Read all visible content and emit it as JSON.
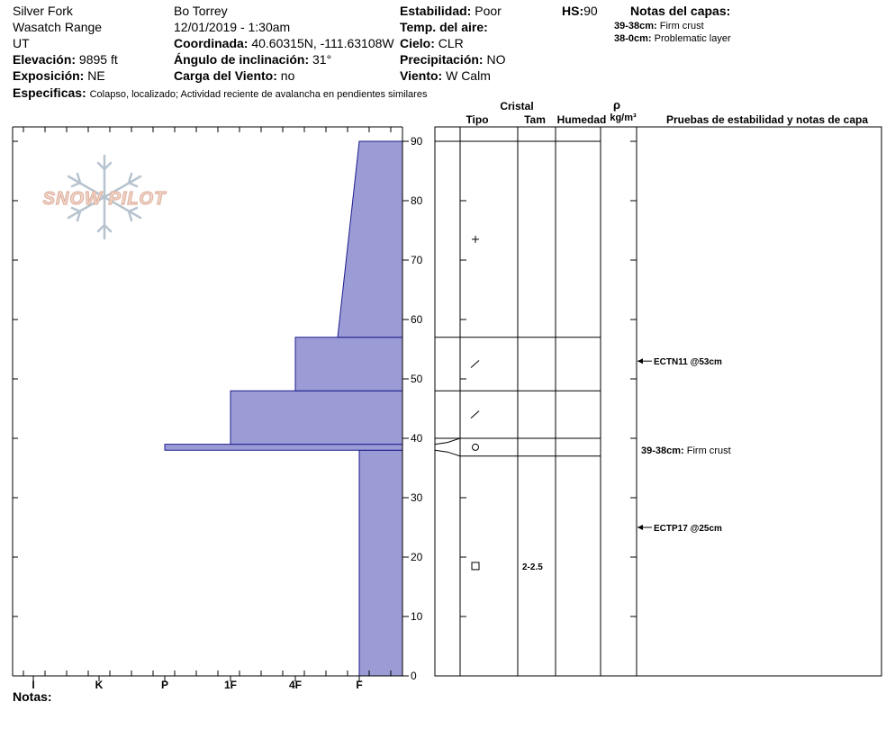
{
  "header": {
    "location": "Silver Fork",
    "range": "Wasatch Range",
    "state": "UT",
    "elevation_label": "Elevación:",
    "elevation_value": "9895 ft",
    "aspect_label": "Exposición:",
    "aspect_value": "NE",
    "specifics_label": "Especificas:",
    "specifics_value": "Colapso, localizado;  Actividad reciente de avalancha en pendientes similares",
    "observer": "Bo Torrey",
    "datetime": "12/01/2019 - 1:30am",
    "coord_label": "Coordinada:",
    "coord_value": "40.60315N, -111.63108W",
    "slope_label": "Ángulo de inclinación:",
    "slope_value": "31°",
    "wind_load_label": "Carga del Viento:",
    "wind_load_value": "no",
    "stability_label": "Estabilidad:",
    "stability_value": "Poor",
    "air_temp_label": "Temp. del aire:",
    "air_temp_value": "",
    "sky_label": "Cielo:",
    "sky_value": "CLR",
    "precip_label": "Precipitación:",
    "precip_value": "NO",
    "wind_label": "Viento:",
    "wind_value": "W Calm",
    "hs_label": "HS:",
    "hs_value": "90",
    "layer_notes_title": "Notas del capas:",
    "layer_notes": [
      {
        "depth": "39-38cm:",
        "text": "Firm crust"
      },
      {
        "depth": "38-0cm:",
        "text": "Problematic layer"
      }
    ],
    "notes_label": "Notas:"
  },
  "logo_text": "SNOW PILOT",
  "columns": {
    "cristal": "Cristal",
    "tipo": "Tipo",
    "tam": "Tam",
    "humedad": "Humedad",
    "rho": "ρ",
    "density_unit": "kg/m³",
    "tests": "Pruebas de estabilidad y notas de capa"
  },
  "chart_data": {
    "type": "bar",
    "title": "",
    "xlabel": "",
    "ylabel": "",
    "ylim": [
      0,
      90
    ],
    "y_ticks": [
      0,
      10,
      20,
      30,
      40,
      50,
      60,
      70,
      80,
      90
    ],
    "hardness_scale": [
      "I",
      "K",
      "P",
      "1F",
      "4F",
      "F"
    ],
    "hardness_profile": [
      {
        "from": 0,
        "to": 38,
        "hardness": "F"
      },
      {
        "from": 38,
        "to": 39,
        "hardness": "P"
      },
      {
        "from": 39,
        "to": 48,
        "hardness": "1F"
      },
      {
        "from": 48,
        "to": 57,
        "hardness": "4F"
      },
      {
        "from": 57,
        "to": 90,
        "hardness_bottom": "F+",
        "hardness_top": "F"
      }
    ],
    "layer_boundaries": [
      90,
      57,
      48,
      40,
      37
    ],
    "crystal_symbols": [
      {
        "height": 73.5,
        "symbol": "+"
      },
      {
        "height": 52.5,
        "symbol": "/"
      },
      {
        "height": 44,
        "symbol": "/"
      },
      {
        "height": 38.5,
        "symbol": "○"
      },
      {
        "height": 18.5,
        "symbol": "□"
      }
    ],
    "grain_sizes": [
      {
        "height": 18.5,
        "value": "2-2.5"
      }
    ],
    "stability_tests": [
      {
        "height": 53,
        "label": "ECTN11 @53cm"
      },
      {
        "height": 25,
        "label": "ECTP17 @25cm"
      }
    ],
    "layer_notes_on_chart": [
      {
        "height": 38,
        "depth": "39-38cm:",
        "text": "Firm crust"
      }
    ]
  }
}
